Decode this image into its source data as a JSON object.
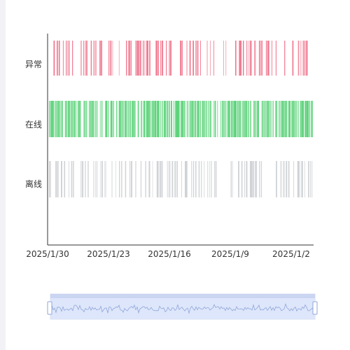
{
  "chart_data": {
    "type": "timeline",
    "rows": [
      "异常",
      "在线",
      "离线"
    ],
    "x_tick_labels": [
      "2025/1/30",
      "2025/1/23",
      "2025/1/16",
      "2025/1/9",
      "2025/1/2"
    ],
    "x_axis": "reversed date (newest on left)",
    "colors": {
      "异常": "#f07b92",
      "在线": "#5fd37c",
      "离线": "#d0d3d6"
    },
    "density": {
      "异常": 0.45,
      "在线": 0.85,
      "离线": 0.4
    },
    "data_zoom": {
      "start": 0,
      "end": 100,
      "handle_color": "#8fa6d8",
      "fill_color": "#dbe4fb"
    }
  }
}
